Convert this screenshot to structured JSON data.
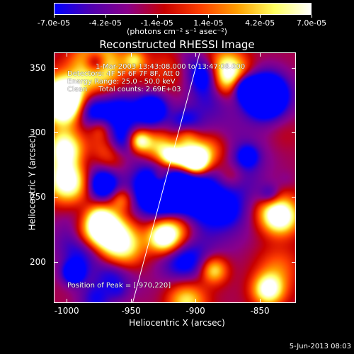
{
  "colorbar": {
    "ticks": [
      "-7.0e-05",
      "-4.2e-05",
      "-1.4e-05",
      "1.4e-05",
      "4.2e-05",
      "7.0e-05"
    ],
    "units_label": "(photons cm⁻² s⁻¹ asec⁻²)",
    "colors": [
      "#0000ff",
      "#5000b0",
      "#8a008a",
      "#c80000",
      "#ff4000",
      "#ffa000",
      "#ffff60",
      "#ffffff"
    ]
  },
  "title": "Reconstructed RHESSI Image",
  "annotations": {
    "time_range": "1-Mar-2003 13:43:08.000 to 13:47:08.000",
    "detectors": "Detectors: 4F 5F 6F 7F 8F, Att 0",
    "energy": "Energy Range: 25.0 - 50.0 keV",
    "method": "Clean     Total counts: 2.69E+03",
    "peak": "Position of Peak = [-970,220]"
  },
  "xaxis": {
    "label": "Heliocentric X (arcsec)",
    "ticks": [
      "-1000",
      "-950",
      "-900",
      "-850"
    ],
    "range": [
      -1010,
      -822
    ]
  },
  "yaxis": {
    "label": "Heliocentric Y (arcsec)",
    "ticks": [
      "200",
      "250",
      "300",
      "350"
    ],
    "range": [
      168,
      362
    ]
  },
  "footer": "5-Jun-2013 08:03"
}
